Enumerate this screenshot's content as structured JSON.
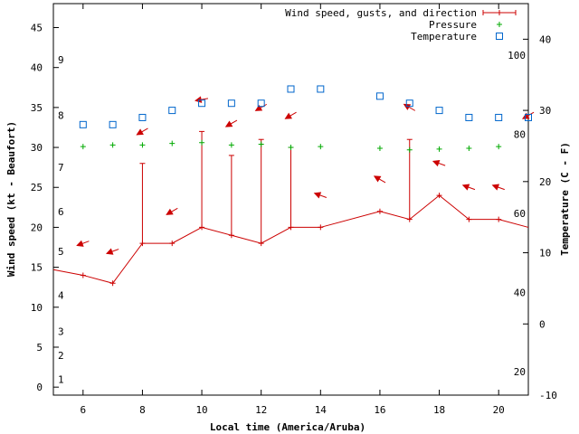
{
  "chart_data": {
    "type": "line",
    "xlabel": "Local time (America/Aruba)",
    "ylabel": "Wind speed (kt - Beaufort)",
    "y2label": "Temperature (C - F)",
    "xlim": [
      5,
      21
    ],
    "ylim": [
      -1,
      48
    ],
    "y2lim": [
      -10,
      45
    ],
    "x_ticks": [
      6,
      8,
      10,
      12,
      14,
      16,
      18,
      20
    ],
    "y_ticks": [
      0,
      5,
      10,
      15,
      20,
      25,
      30,
      35,
      40,
      45
    ],
    "y2_ticks": [
      -10,
      0,
      10,
      20,
      30,
      40
    ],
    "beaufort_labels": [
      {
        "label": "1",
        "kt": 1
      },
      {
        "label": "2",
        "kt": 4
      },
      {
        "label": "3",
        "kt": 7
      },
      {
        "label": "4",
        "kt": 11.5
      },
      {
        "label": "5",
        "kt": 17
      },
      {
        "label": "6",
        "kt": 22
      },
      {
        "label": "7",
        "kt": 27.5
      },
      {
        "label": "8",
        "kt": 34
      },
      {
        "label": "9",
        "kt": 41
      }
    ],
    "fahrenheit_labels": [
      {
        "label": "20",
        "degC": -6.67
      },
      {
        "label": "40",
        "degC": 4.44
      },
      {
        "label": "60",
        "degC": 15.56
      },
      {
        "label": "80",
        "degC": 26.67
      },
      {
        "label": "100",
        "degC": 37.78
      }
    ],
    "legend": [
      {
        "name": "Wind speed, gusts, and direction",
        "marker": "+",
        "color": "#cc0000"
      },
      {
        "name": "Pressure",
        "marker": "+",
        "color": "#00aa00"
      },
      {
        "name": "Temperature",
        "marker": "square",
        "color": "#0066cc"
      }
    ],
    "legend_position": "top-right",
    "series": [
      {
        "name": "Wind speed",
        "color": "#cc0000",
        "points": [
          {
            "x": 5,
            "y": 14.7
          },
          {
            "x": 6,
            "y": 14
          },
          {
            "x": 7,
            "y": 13
          },
          {
            "x": 8,
            "y": 18
          },
          {
            "x": 9,
            "y": 18
          },
          {
            "x": 10,
            "y": 20
          },
          {
            "x": 11,
            "y": 19
          },
          {
            "x": 12,
            "y": 18
          },
          {
            "x": 13,
            "y": 20
          },
          {
            "x": 14,
            "y": 20
          },
          {
            "x": 16,
            "y": 22
          },
          {
            "x": 17,
            "y": 21
          },
          {
            "x": 18,
            "y": 24
          },
          {
            "x": 19,
            "y": 21
          },
          {
            "x": 20,
            "y": 21
          },
          {
            "x": 21,
            "y": 20
          }
        ]
      },
      {
        "name": "Gusts",
        "color": "#cc0000",
        "points": [
          {
            "x": 8,
            "y": 28
          },
          {
            "x": 10,
            "y": 32
          },
          {
            "x": 11,
            "y": 29
          },
          {
            "x": 12,
            "y": 31
          },
          {
            "x": 13,
            "y": 30
          },
          {
            "x": 17,
            "y": 31
          }
        ]
      },
      {
        "name": "Wind direction",
        "color": "#cc0000",
        "points": [
          {
            "x": 6,
            "y": 18,
            "dir": 70
          },
          {
            "x": 7,
            "y": 17,
            "dir": 70
          },
          {
            "x": 8,
            "y": 32,
            "dir": 60
          },
          {
            "x": 9,
            "y": 22,
            "dir": 60
          },
          {
            "x": 10,
            "y": 36,
            "dir": 80
          },
          {
            "x": 11,
            "y": 33,
            "dir": 60
          },
          {
            "x": 12,
            "y": 35,
            "dir": 60
          },
          {
            "x": 13,
            "y": 34,
            "dir": 60
          },
          {
            "x": 14,
            "y": 24,
            "dir": 110
          },
          {
            "x": 16,
            "y": 26,
            "dir": 120
          },
          {
            "x": 17,
            "y": 35,
            "dir": 120
          },
          {
            "x": 18,
            "y": 28,
            "dir": 110
          },
          {
            "x": 19,
            "y": 25,
            "dir": 110
          },
          {
            "x": 20,
            "y": 25,
            "dir": 110
          },
          {
            "x": 21,
            "y": 34,
            "dir": 60
          }
        ]
      },
      {
        "name": "Pressure",
        "color": "#00aa00",
        "axis": "y",
        "points": [
          {
            "x": 6,
            "y": 30.1
          },
          {
            "x": 7,
            "y": 30.3
          },
          {
            "x": 8,
            "y": 30.3
          },
          {
            "x": 9,
            "y": 30.5
          },
          {
            "x": 10,
            "y": 30.6
          },
          {
            "x": 11,
            "y": 30.3
          },
          {
            "x": 12,
            "y": 30.4
          },
          {
            "x": 13,
            "y": 30.0
          },
          {
            "x": 14,
            "y": 30.1
          },
          {
            "x": 16,
            "y": 29.9
          },
          {
            "x": 17,
            "y": 29.7
          },
          {
            "x": 18,
            "y": 29.8
          },
          {
            "x": 19,
            "y": 29.9
          },
          {
            "x": 20,
            "y": 30.1
          },
          {
            "x": 21,
            "y": 30.0
          }
        ]
      },
      {
        "name": "Temperature",
        "color": "#0066cc",
        "axis": "y2",
        "points": [
          {
            "x": 6,
            "y": 28
          },
          {
            "x": 7,
            "y": 28
          },
          {
            "x": 8,
            "y": 29
          },
          {
            "x": 9,
            "y": 30
          },
          {
            "x": 10,
            "y": 31
          },
          {
            "x": 11,
            "y": 31
          },
          {
            "x": 12,
            "y": 31
          },
          {
            "x": 13,
            "y": 33
          },
          {
            "x": 14,
            "y": 33
          },
          {
            "x": 16,
            "y": 32
          },
          {
            "x": 17,
            "y": 31
          },
          {
            "x": 18,
            "y": 30
          },
          {
            "x": 19,
            "y": 29
          },
          {
            "x": 20,
            "y": 29
          },
          {
            "x": 21,
            "y": 29
          }
        ]
      }
    ]
  }
}
